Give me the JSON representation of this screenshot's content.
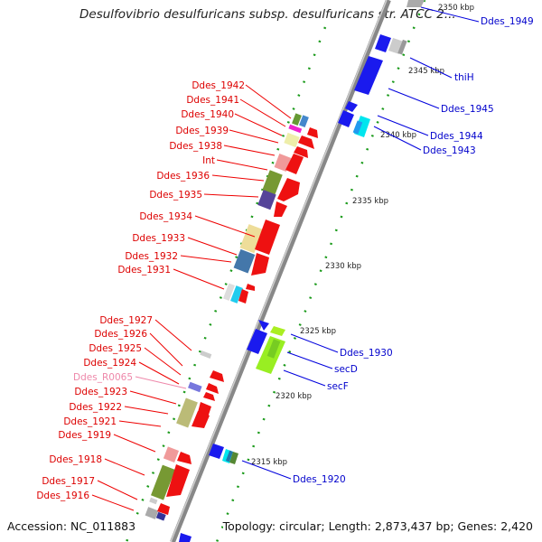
{
  "title": "Desulfovibrio desulfuricans subsp. desulfuricans str. ATCC 2...",
  "accession": "Accession: NC_011883",
  "topology": "Topology: circular; Length: 2,873,437 bp; Genes: 2,420",
  "colors": {
    "backbone": "#888888",
    "left_label": "#dd0000",
    "right_label": "#0000cc",
    "rna_label": "#ee88aa",
    "tick": "#118811"
  },
  "kbp_labels": [
    "2350 kbp",
    "2345 kbp",
    "2340 kbp",
    "2335 kbp",
    "2330 kbp",
    "2325 kbp",
    "2320 kbp",
    "2315 kbp"
  ],
  "left_labels": [
    "Ddes_1942",
    "Ddes_1941",
    "Ddes_1940",
    "Ddes_1939",
    "Ddes_1938",
    "Int",
    "Ddes_1936",
    "Ddes_1935",
    "Ddes_1934",
    "Ddes_1933",
    "Ddes_1932",
    "Ddes_1931",
    "Ddes_1927",
    "Ddes_1926",
    "Ddes_1925",
    "Ddes_1924",
    "Ddes_R0065",
    "Ddes_1923",
    "Ddes_1922",
    "Ddes_1921",
    "Ddes_1919",
    "Ddes_1918",
    "Ddes_1917",
    "Ddes_1916"
  ],
  "right_labels": [
    "Ddes_1949",
    "thiH",
    "Ddes_1945",
    "Ddes_1944",
    "Ddes_1943",
    "Ddes_1930",
    "secD",
    "secF",
    "Ddes_1920"
  ]
}
